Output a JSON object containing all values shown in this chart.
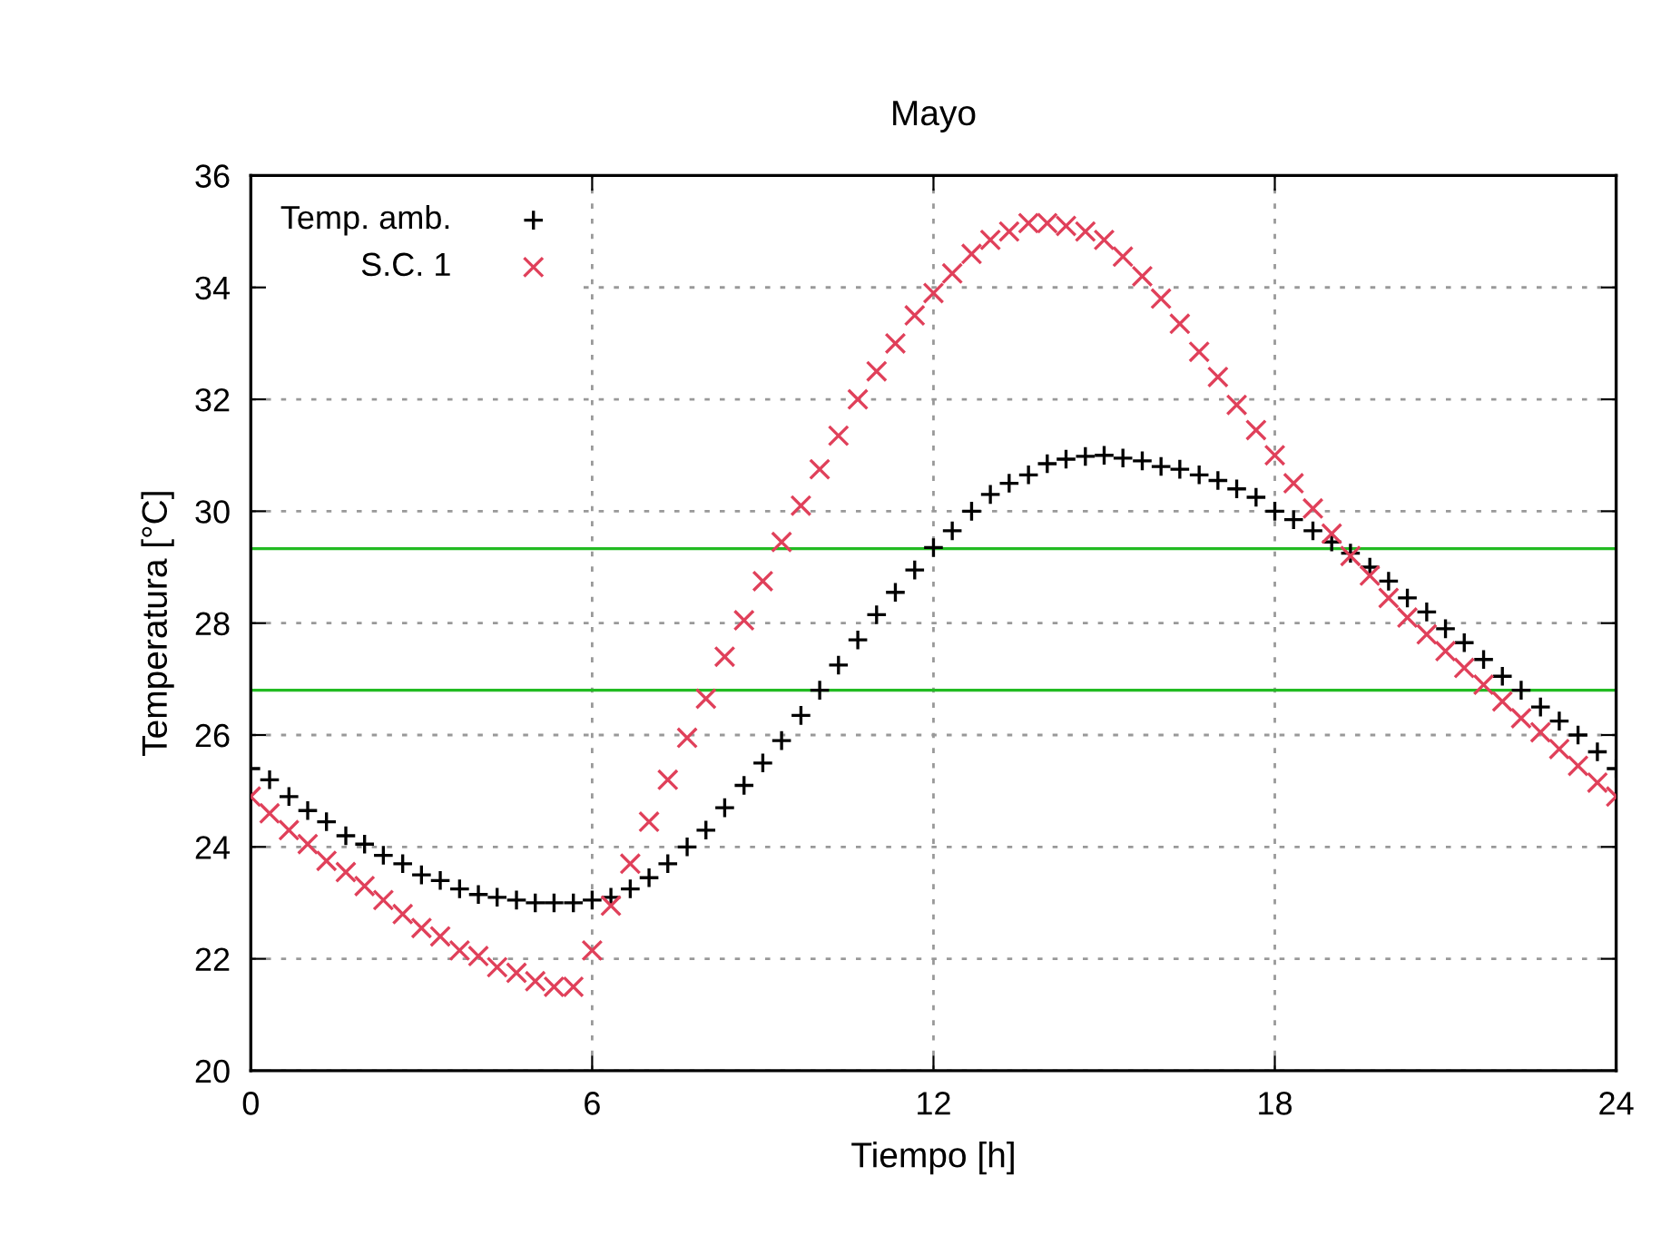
{
  "chart_data": {
    "type": "scatter",
    "title": "Mayo",
    "xlabel": "Tiempo [h]",
    "ylabel": "Temperatura [°C]",
    "x": [
      0,
      0.33,
      0.67,
      1,
      1.33,
      1.67,
      2,
      2.33,
      2.67,
      3,
      3.33,
      3.67,
      4,
      4.33,
      4.67,
      5,
      5.33,
      5.67,
      6,
      6.33,
      6.67,
      7,
      7.33,
      7.67,
      8,
      8.33,
      8.67,
      9,
      9.33,
      9.67,
      10,
      10.33,
      10.67,
      11,
      11.33,
      11.67,
      12,
      12.33,
      12.67,
      13,
      13.33,
      13.67,
      14,
      14.33,
      14.67,
      15,
      15.33,
      15.67,
      16,
      16.33,
      16.67,
      17,
      17.33,
      17.67,
      18,
      18.33,
      18.67,
      19,
      19.33,
      19.67,
      20,
      20.33,
      20.67,
      21,
      21.33,
      21.67,
      22,
      22.33,
      22.67,
      23,
      23.33,
      23.67,
      24
    ],
    "series": [
      {
        "name": "Temp. amb.",
        "color": "#000000",
        "marker": "plus",
        "values": [
          25.4,
          25.2,
          24.9,
          24.65,
          24.45,
          24.2,
          24.05,
          23.85,
          23.7,
          23.5,
          23.4,
          23.25,
          23.15,
          23.1,
          23.05,
          23.0,
          23.0,
          23.0,
          23.05,
          23.1,
          23.25,
          23.45,
          23.7,
          24.0,
          24.3,
          24.7,
          25.1,
          25.5,
          25.9,
          26.35,
          26.8,
          27.25,
          27.7,
          28.15,
          28.55,
          28.95,
          29.35,
          29.65,
          30.0,
          30.3,
          30.5,
          30.65,
          30.85,
          30.93,
          30.98,
          31.0,
          30.95,
          30.9,
          30.8,
          30.75,
          30.65,
          30.55,
          30.4,
          30.25,
          30.0,
          29.85,
          29.65,
          29.45,
          29.25,
          29.0,
          28.75,
          28.45,
          28.2,
          27.9,
          27.65,
          27.35,
          27.05,
          26.8,
          26.5,
          26.25,
          26.0,
          25.7,
          25.4
        ]
      },
      {
        "name": "S.C. 1",
        "color": "#e0405a",
        "marker": "cross",
        "values": [
          24.9,
          24.6,
          24.3,
          24.05,
          23.75,
          23.55,
          23.3,
          23.05,
          22.8,
          22.55,
          22.4,
          22.15,
          22.05,
          21.85,
          21.75,
          21.6,
          21.5,
          21.5,
          22.15,
          22.95,
          23.7,
          24.45,
          25.2,
          25.95,
          26.65,
          27.4,
          28.05,
          28.75,
          29.45,
          30.1,
          30.75,
          31.35,
          32.0,
          32.5,
          33.0,
          33.5,
          33.9,
          34.25,
          34.6,
          34.85,
          35.0,
          35.15,
          35.15,
          35.1,
          35.0,
          34.85,
          34.55,
          34.2,
          33.8,
          33.35,
          32.85,
          32.4,
          31.9,
          31.45,
          31.0,
          30.5,
          30.05,
          29.6,
          29.2,
          28.85,
          28.45,
          28.1,
          27.8,
          27.5,
          27.2,
          26.9,
          26.6,
          26.3,
          26.05,
          25.75,
          25.45,
          25.15,
          24.9
        ]
      }
    ],
    "ref_lines": [
      {
        "axis": "y",
        "value": 29.33,
        "color": "#22bb22"
      },
      {
        "axis": "y",
        "value": 26.8,
        "color": "#22bb22"
      }
    ],
    "xlim": [
      0,
      24
    ],
    "xticks": [
      0,
      6,
      12,
      18,
      24
    ],
    "ylim": [
      20,
      36
    ],
    "yticks": [
      20,
      22,
      24,
      26,
      28,
      30,
      32,
      34,
      36
    ],
    "grid": true,
    "legend": "top left"
  }
}
